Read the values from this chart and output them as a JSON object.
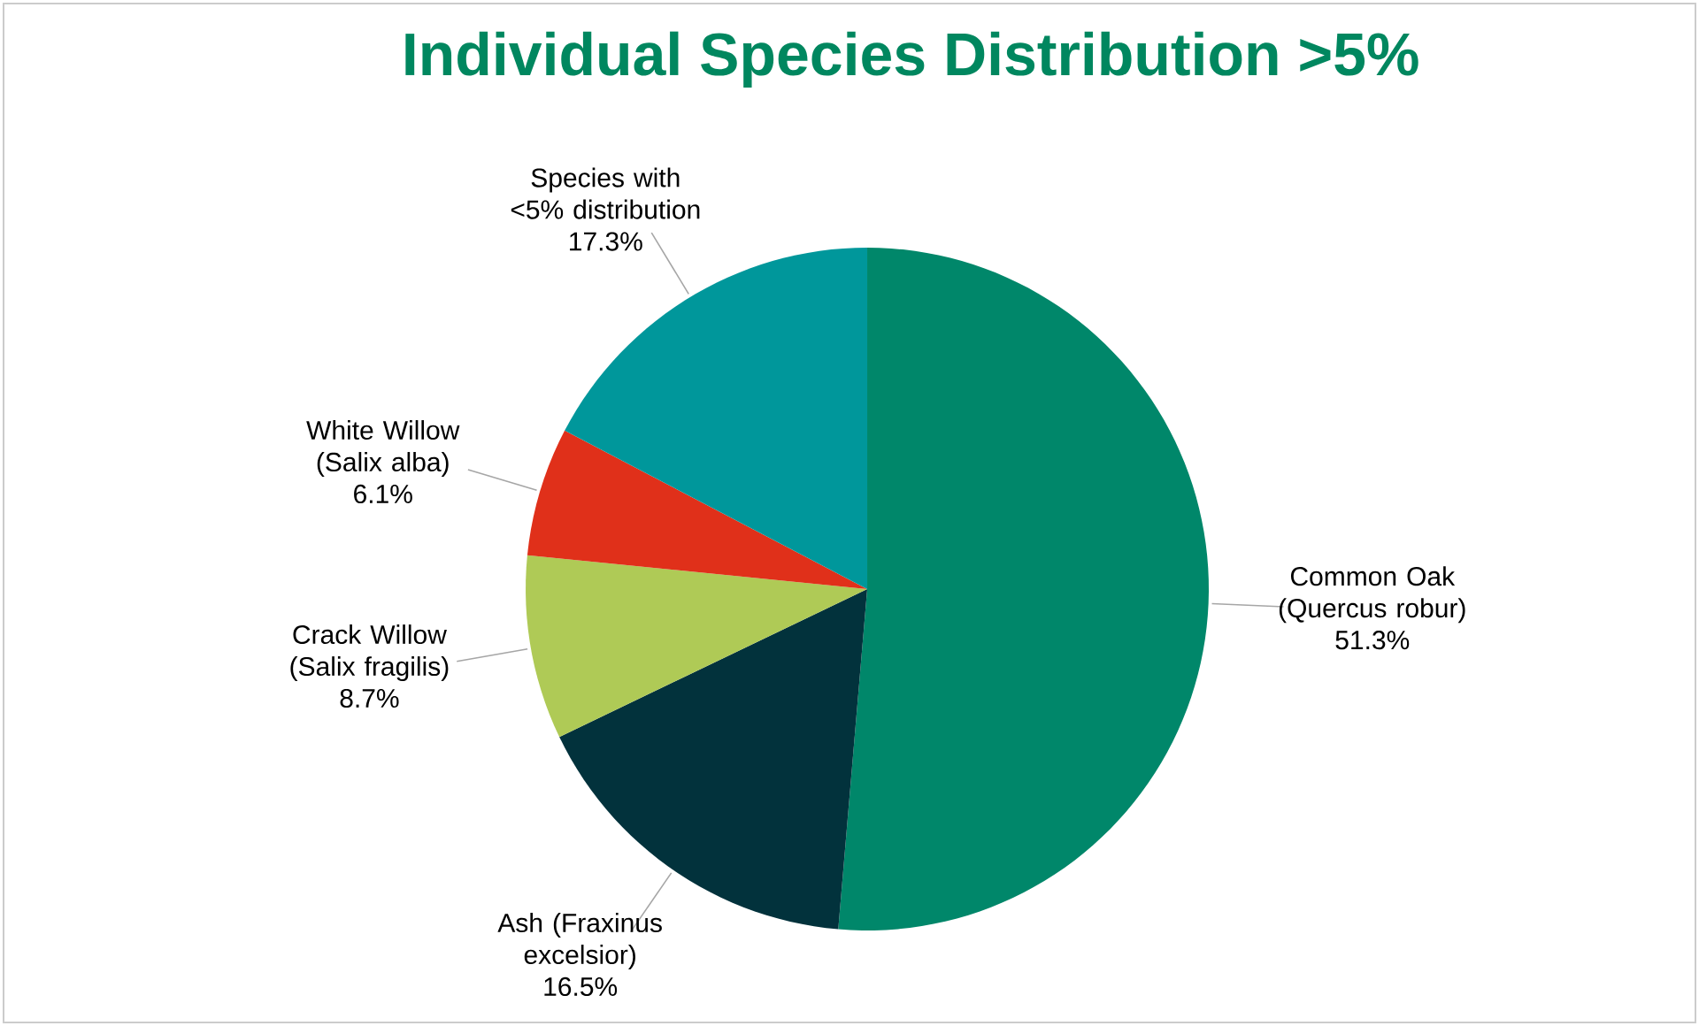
{
  "chart_data": {
    "type": "pie",
    "title": "Individual Species Distribution >5%",
    "categories": [
      "Common Oak (Quercus robur)",
      "Ash (Fraxinus excelsior)",
      "Crack Willow (Salix fragilis)",
      "White Willow (Salix alba)",
      "Species with <5% distribution"
    ],
    "values": [
      51.3,
      16.5,
      8.7,
      6.1,
      17.3
    ],
    "value_labels": [
      "51.3%",
      "16.5%",
      "8.7%",
      "6.1%",
      "17.3%"
    ],
    "colors": [
      "#00876a",
      "#02323c",
      "#afca56",
      "#e0301a",
      "#00979b"
    ]
  }
}
